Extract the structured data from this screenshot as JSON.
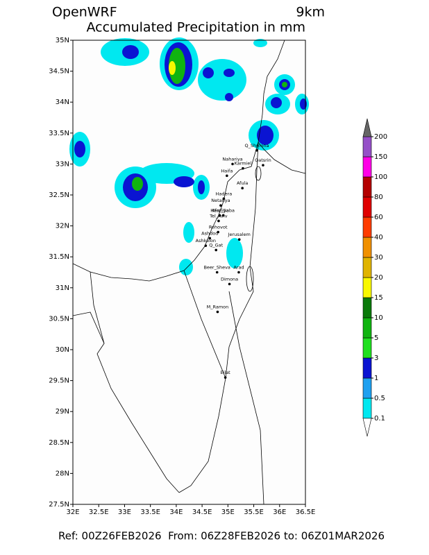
{
  "title": "OpenWRF",
  "resolution": "9km",
  "subtitle": "Accumulated Precipitation in mm",
  "map": {
    "lonlim": [
      32,
      36.5
    ],
    "latlim": [
      27.5,
      35
    ],
    "xticks": [
      {
        "value": 32,
        "label": "32E"
      },
      {
        "value": 32.5,
        "label": "32.5E"
      },
      {
        "value": 33,
        "label": "33E"
      },
      {
        "value": 33.5,
        "label": "33.5E"
      },
      {
        "value": 34,
        "label": "34E"
      },
      {
        "value": 34.5,
        "label": "34.5E"
      },
      {
        "value": 35,
        "label": "35E"
      },
      {
        "value": 35.5,
        "label": "35.5E"
      },
      {
        "value": 36,
        "label": "36E"
      },
      {
        "value": 36.5,
        "label": "36.5E"
      }
    ],
    "yticks": [
      {
        "value": 27.5,
        "label": "27.5N"
      },
      {
        "value": 28,
        "label": "28N"
      },
      {
        "value": 28.5,
        "label": "28.5N"
      },
      {
        "value": 29,
        "label": "29N"
      },
      {
        "value": 29.5,
        "label": "29.5N"
      },
      {
        "value": 30,
        "label": "30N"
      },
      {
        "value": 30.5,
        "label": "30.5N"
      },
      {
        "value": 31,
        "label": "31N"
      },
      {
        "value": 31.5,
        "label": "31.5N"
      },
      {
        "value": 32,
        "label": "32N"
      },
      {
        "value": 32.5,
        "label": "32.5N"
      },
      {
        "value": 33,
        "label": "33N"
      },
      {
        "value": 33.5,
        "label": "33.5N"
      },
      {
        "value": 34,
        "label": "34N"
      },
      {
        "value": 34.5,
        "label": "34.5N"
      },
      {
        "value": 35,
        "label": "35N"
      }
    ]
  },
  "cities": [
    {
      "name": "Q_Shmona",
      "lon": 35.56,
      "lat": 33.22
    },
    {
      "name": "Nahariya",
      "lon": 35.09,
      "lat": 33.0
    },
    {
      "name": "Karmiel",
      "lon": 35.29,
      "lat": 32.93
    },
    {
      "name": "Qatsrin",
      "lon": 35.68,
      "lat": 32.98
    },
    {
      "name": "Haifa",
      "lon": 34.98,
      "lat": 32.81
    },
    {
      "name": "Afula",
      "lon": 35.28,
      "lat": 32.61
    },
    {
      "name": "Hadera",
      "lon": 34.92,
      "lat": 32.44
    },
    {
      "name": "Netanya",
      "lon": 34.86,
      "lat": 32.33
    },
    {
      "name": "Herzliya",
      "lon": 34.84,
      "lat": 32.17
    },
    {
      "name": "Kfar_Saba",
      "lon": 34.91,
      "lat": 32.17
    },
    {
      "name": "Tel_Aviv",
      "lon": 34.82,
      "lat": 32.08
    },
    {
      "name": "Rehovot",
      "lon": 34.81,
      "lat": 31.9
    },
    {
      "name": "Ashdod",
      "lon": 34.65,
      "lat": 31.8
    },
    {
      "name": "Jerusalem",
      "lon": 35.22,
      "lat": 31.78
    },
    {
      "name": "Ashkelon",
      "lon": 34.57,
      "lat": 31.68
    },
    {
      "name": "Q_Gat",
      "lon": 34.77,
      "lat": 31.61
    },
    {
      "name": "Beer_Sheva",
      "lon": 34.79,
      "lat": 31.25
    },
    {
      "name": "Arad",
      "lon": 35.21,
      "lat": 31.25
    },
    {
      "name": "Dimona",
      "lon": 35.03,
      "lat": 31.06
    },
    {
      "name": "M_Ramon",
      "lon": 34.8,
      "lat": 30.61
    },
    {
      "name": "Eilat",
      "lon": 34.95,
      "lat": 29.55
    }
  ],
  "colorbar": {
    "levels": [
      0.1,
      0.5,
      1,
      3,
      5,
      10,
      15,
      20,
      30,
      40,
      60,
      80,
      100,
      150,
      200
    ],
    "colors": [
      "#00e8f0",
      "#1ea0f0",
      "#0a14d2",
      "#20e020",
      "#10b410",
      "#0a7a0a",
      "#f8f800",
      "#e0b400",
      "#f09000",
      "#ff3c00",
      "#e00000",
      "#b40000",
      "#ff00e6",
      "#9650c8"
    ],
    "over_color": "#666666",
    "under_color": "#ffffff"
  },
  "footer": "Ref: 00Z26FEB2026  From: 06Z28FEB2026 to: 06Z01MAR2026"
}
